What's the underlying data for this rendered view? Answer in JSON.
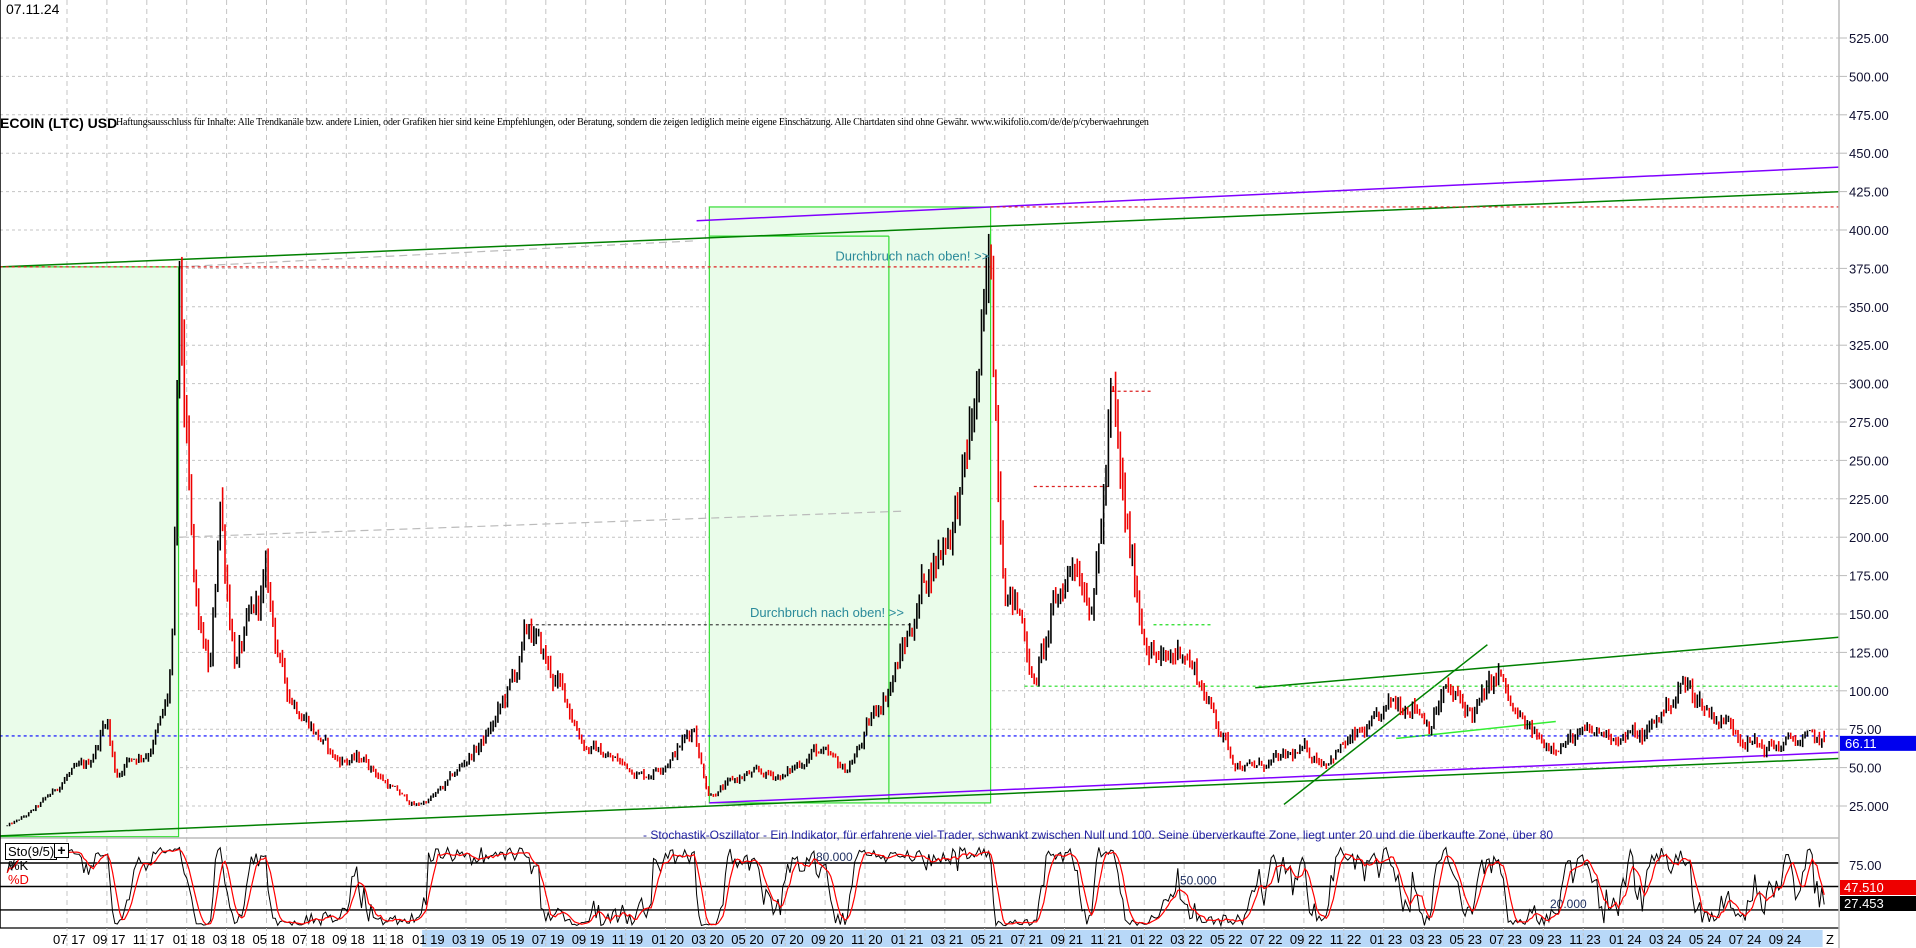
{
  "header": {
    "date": "07.11.24",
    "title": "ECOIN (LTC) USD",
    "disclaimer": "Haftungsausschluss für Inhalte: Alle Trendkanäle bzw. andere Linien, oder Grafiken hier sind keine Empfehlungen, oder Beratung, sondern die zeigen lediglich meine eigene Einschätzung. Alle Chartdaten sind ohne Gewähr.  www.wikifolio.com/de/de/p/cyberwaehrungen"
  },
  "chart_data": [
    {
      "type": "line",
      "title": "ECOIN (LTC) USD",
      "style": "bars",
      "ylim": [
        0,
        545
      ],
      "yticks": [
        "25.000",
        "50.00",
        "75.00",
        "100.00",
        "125.00",
        "150.00",
        "175.00",
        "200.00",
        "225.00",
        "250.00",
        "275.00",
        "300.00",
        "325.00",
        "350.00",
        "375.00",
        "400.00",
        "425.00",
        "450.00",
        "475.00",
        "500.00",
        "525.00"
      ],
      "ytick_values": [
        25,
        50,
        75,
        100,
        125,
        150,
        175,
        200,
        225,
        250,
        275,
        300,
        325,
        350,
        375,
        400,
        425,
        450,
        475,
        500,
        525
      ],
      "xticks": [
        "07 17",
        "09 17",
        "11 17",
        "01 18",
        "03 18",
        "05 18",
        "07 18",
        "09 18",
        "11 18",
        "01 19",
        "03 19",
        "05 19",
        "07 19",
        "09 19",
        "11 19",
        "01 20",
        "03 20",
        "05 20",
        "07 20",
        "09 20",
        "11 20",
        "01 21",
        "03 21",
        "05 21",
        "07 21",
        "09 21",
        "11 21",
        "01 22",
        "03 22",
        "05 22",
        "07 22",
        "09 22",
        "11 22",
        "01 23",
        "03 23",
        "05 23",
        "07 23",
        "09 23",
        "11 23",
        "01 24",
        "03 24",
        "05 24",
        "07 24",
        "09 24"
      ],
      "xaxis_end_label": "Z",
      "grid": true,
      "last_price": "66.11",
      "last_price_value": 66.11,
      "series": [
        {
          "points": [
            [
              "2017-04-01",
              12
            ],
            [
              "2017-06-01",
              30
            ],
            [
              "2017-07-01",
              45
            ],
            [
              "2017-08-01",
              50
            ],
            [
              "2017-09-01",
              85
            ],
            [
              "2017-09-15",
              45
            ],
            [
              "2017-10-01",
              55
            ],
            [
              "2017-11-01",
              60
            ],
            [
              "2017-12-01",
              90
            ],
            [
              "2017-12-10",
              130
            ],
            [
              "2017-12-19",
              360
            ],
            [
              "2018-01-01",
              250
            ],
            [
              "2018-01-15",
              150
            ],
            [
              "2018-02-06",
              110
            ],
            [
              "2018-02-21",
              230
            ],
            [
              "2018-03-15",
              120
            ],
            [
              "2018-05-01",
              170
            ],
            [
              "2018-06-01",
              100
            ],
            [
              "2018-07-01",
              85
            ],
            [
              "2018-08-15",
              55
            ],
            [
              "2018-10-01",
              55
            ],
            [
              "2018-11-15",
              35
            ],
            [
              "2018-12-15",
              25
            ],
            [
              "2019-01-15",
              32
            ],
            [
              "2019-03-01",
              55
            ],
            [
              "2019-04-01",
              70
            ],
            [
              "2019-05-01",
              95
            ],
            [
              "2019-06-07",
              140
            ],
            [
              "2019-08-01",
              95
            ],
            [
              "2019-09-01",
              65
            ],
            [
              "2019-10-15",
              55
            ],
            [
              "2019-12-01",
              45
            ],
            [
              "2020-01-15",
              60
            ],
            [
              "2020-02-15",
              78
            ],
            [
              "2020-03-07",
              33
            ],
            [
              "2020-05-01",
              45
            ],
            [
              "2020-07-01",
              45
            ],
            [
              "2020-08-15",
              62
            ],
            [
              "2020-10-01",
              48
            ],
            [
              "2020-11-15",
              85
            ],
            [
              "2021-01-01",
              130
            ],
            [
              "2021-02-01",
              175
            ],
            [
              "2021-03-01",
              200
            ],
            [
              "2021-04-01",
              240
            ],
            [
              "2021-05-10",
              370
            ],
            [
              "2021-06-01",
              180
            ],
            [
              "2021-07-01",
              140
            ],
            [
              "2021-07-15",
              105
            ],
            [
              "2021-08-15",
              150
            ],
            [
              "2021-09-15",
              190
            ],
            [
              "2021-10-15",
              165
            ],
            [
              "2021-11-12",
              290
            ],
            [
              "2021-12-01",
              210
            ],
            [
              "2022-01-01",
              140
            ],
            [
              "2022-02-01",
              115
            ],
            [
              "2022-03-01",
              130
            ],
            [
              "2022-04-01",
              100
            ],
            [
              "2022-05-01",
              70
            ],
            [
              "2022-05-15",
              55
            ],
            [
              "2022-06-15",
              50
            ],
            [
              "2022-08-01",
              55
            ],
            [
              "2022-09-01",
              60
            ],
            [
              "2022-10-01",
              55
            ],
            [
              "2022-11-01",
              65
            ],
            [
              "2022-12-15",
              75
            ],
            [
              "2023-01-15",
              90
            ],
            [
              "2023-02-15",
              95
            ],
            [
              "2023-03-10",
              80
            ],
            [
              "2023-04-01",
              100
            ],
            [
              "2023-05-15",
              85
            ],
            [
              "2023-06-25",
              110
            ],
            [
              "2023-07-15",
              85
            ],
            [
              "2023-09-01",
              65
            ],
            [
              "2023-10-01",
              68
            ],
            [
              "2023-11-01",
              70
            ],
            [
              "2023-12-15",
              72
            ],
            [
              "2024-02-01",
              70
            ],
            [
              "2024-03-15",
              95
            ],
            [
              "2024-04-01",
              105
            ],
            [
              "2024-05-15",
              85
            ],
            [
              "2024-06-15",
              78
            ],
            [
              "2024-08-01",
              62
            ],
            [
              "2024-09-01",
              65
            ],
            [
              "2024-10-01",
              68
            ],
            [
              "2024-11-07",
              66.11
            ]
          ]
        }
      ],
      "shaded_zones": [
        {
          "from": "2017-03-20",
          "to": "2017-12-19",
          "low": 5,
          "high": 376,
          "color": "#eafcea",
          "border": "#33dd33"
        },
        {
          "from": "2020-03-07",
          "to": "2021-05-10",
          "low": 27,
          "high": 415,
          "color": "#eafcea",
          "border": "#33dd33"
        }
      ],
      "trendlines": [
        {
          "from": [
            "2017-03-20",
            376
          ],
          "to": [
            "2024-11-30",
            425
          ],
          "color": "#008000",
          "style": "solid"
        },
        {
          "from": [
            "2020-02-18",
            406
          ],
          "to": [
            "2024-11-30",
            441
          ],
          "color": "#8000ff",
          "style": "solid"
        },
        {
          "from": [
            "2017-03-20",
            5.5
          ],
          "to": [
            "2024-11-30",
            56
          ],
          "color": "#008000",
          "style": "solid"
        },
        {
          "from": [
            "2020-03-07",
            27
          ],
          "to": [
            "2024-11-30",
            60
          ],
          "color": "#8000ff",
          "style": "solid"
        },
        {
          "from": [
            "2022-06-18",
            102
          ],
          "to": [
            "2024-11-30",
            135
          ],
          "color": "#008000",
          "style": "solid"
        },
        {
          "from": [
            "2022-08-01",
            26
          ],
          "to": [
            "2023-06-07",
            130
          ],
          "color": "#008000",
          "style": "solid"
        },
        {
          "from": [
            "2023-01-20",
            69
          ],
          "to": [
            "2023-09-20",
            80
          ],
          "color": "#33ee33",
          "style": "solid"
        },
        {
          "from": [
            "2017-12-19",
            376
          ],
          "to": [
            "2020-02-18",
            393
          ],
          "color": "#bbbbbb",
          "style": "dashed"
        },
        {
          "from": [
            "2017-12-19",
            200
          ],
          "to": [
            "2021-01-01",
            217
          ],
          "color": "#bbbbbb",
          "style": "dashed"
        },
        {
          "from": [
            "2017-03-20",
            376
          ],
          "to": [
            "2021-05-10",
            376
          ],
          "color": "#dd2222",
          "style": "dotted"
        },
        {
          "from": [
            "2021-05-10",
            415
          ],
          "to": [
            "2024-11-30",
            415
          ],
          "color": "#dd2222",
          "style": "dotted"
        },
        {
          "from": [
            "2021-11-12",
            295
          ],
          "to": [
            "2022-01-15",
            295
          ],
          "color": "#dd2222",
          "style": "dotted"
        },
        {
          "from": [
            "2021-07-15",
            233
          ],
          "to": [
            "2021-11-12",
            233
          ],
          "color": "#dd2222",
          "style": "dotted"
        },
        {
          "from": [
            "2019-06-07",
            143
          ],
          "to": [
            "2021-01-15",
            143
          ],
          "color": "#444444",
          "style": "dotted"
        },
        {
          "from": [
            "2021-07-01",
            103
          ],
          "to": [
            "2024-11-30",
            103
          ],
          "color": "#22dd22",
          "style": "dotted"
        },
        {
          "from": [
            "2022-01-15",
            143
          ],
          "to": [
            "2022-04-15",
            143
          ],
          "color": "#22dd22",
          "style": "dotted"
        },
        {
          "from": [
            "2017-03-20",
            70.6
          ],
          "to": [
            "2024-11-30",
            70.6
          ],
          "color": "#0000ff",
          "style": "dotted"
        }
      ],
      "vertical_markers": [
        {
          "date": "2020-12-07",
          "low": 27,
          "high": 396,
          "color": "#33dd33"
        }
      ],
      "annotations": [
        {
          "text": "Durchbruch nach oben! >>",
          "date": "2021-05-08",
          "price": 380
        },
        {
          "text": "Durchbruch nach oben! >>",
          "date": "2020-12-30",
          "price": 148
        }
      ]
    },
    {
      "type": "line",
      "title": "Sto(9/5)",
      "note": "- Stochastik-Oszillator - Ein Indikator, für erfahrene viel-Trader, schwankt zwischen Null und 100. Seine überverkaufte Zone, liegt unter 20 und die überkaufte Zone, über 80",
      "ylim": [
        0,
        100
      ],
      "levels": [
        {
          "value": 80,
          "label": "80.000"
        },
        {
          "value": 50,
          "label": "50.000"
        },
        {
          "value": 20,
          "label": "20.000"
        }
      ],
      "yticks": [
        "75.00"
      ],
      "series": [
        {
          "name": "%K",
          "color": "#000000",
          "last": "27.453"
        },
        {
          "name": "%D",
          "color": "#ff0000",
          "last": "47.510"
        }
      ],
      "add_button": "+"
    }
  ]
}
